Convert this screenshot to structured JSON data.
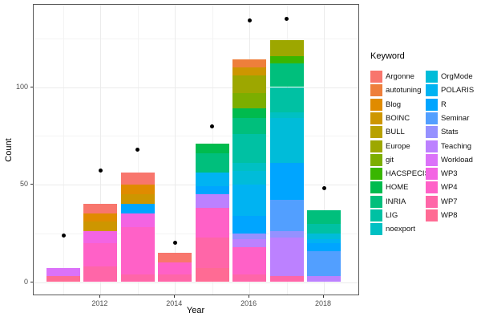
{
  "figure": {
    "background": "#FFFFFF",
    "panel_border_color": "#595959",
    "grid_major_color": "#EBEBEB",
    "grid_minor_color": "#F3F3F3",
    "point_color": "#000000",
    "tick_label_color": "#4D4D4D"
  },
  "chart_data": {
    "type": "bar",
    "stacked": true,
    "title": "",
    "xlabel": "Year",
    "ylabel": "Count",
    "legend_title": "Keyword",
    "legend_position": "right",
    "grid": true,
    "x_major_ticks": [
      2012,
      2014,
      2016,
      2018
    ],
    "x_minor_gridlines": [
      2011,
      2013,
      2015,
      2017
    ],
    "y_major_ticks": [
      0,
      50,
      100
    ],
    "y_minor_gridlines": [
      25,
      75,
      125
    ],
    "ylim": [
      -7,
      142
    ],
    "xlim": [
      2010.2,
      2018.8
    ],
    "segment_order": "bottom_to_top",
    "keywords": [
      {
        "label": "Argonne",
        "color": "#F8766D"
      },
      {
        "label": "autotuning",
        "color": "#EE7F3B"
      },
      {
        "label": "Blog",
        "color": "#E08B00"
      },
      {
        "label": "BOINC",
        "color": "#CD9600"
      },
      {
        "label": "BULL",
        "color": "#B8A100"
      },
      {
        "label": "Europe",
        "color": "#9DA700"
      },
      {
        "label": "git",
        "color": "#7CAE00"
      },
      {
        "label": "HACSPECIS",
        "color": "#39B600"
      },
      {
        "label": "HOME",
        "color": "#00BB4E"
      },
      {
        "label": "INRIA",
        "color": "#00BF7C"
      },
      {
        "label": "LIG",
        "color": "#00C1A3"
      },
      {
        "label": "noexport",
        "color": "#00C0C3"
      },
      {
        "label": "OrgMode",
        "color": "#00BCD9"
      },
      {
        "label": "POLARIS",
        "color": "#00B3F2"
      },
      {
        "label": "R",
        "color": "#00A5FF"
      },
      {
        "label": "Seminar",
        "color": "#529FFF"
      },
      {
        "label": "Stats",
        "color": "#9591FF"
      },
      {
        "label": "Teaching",
        "color": "#BC81FF"
      },
      {
        "label": "Workload",
        "color": "#DB72F9"
      },
      {
        "label": "WP3",
        "color": "#F364E3"
      },
      {
        "label": "WP4",
        "color": "#FF61C7"
      },
      {
        "label": "WP7",
        "color": "#FF66A8"
      },
      {
        "label": "WP8",
        "color": "#FF6B94"
      }
    ],
    "bars": [
      {
        "year": 2011,
        "total": 7,
        "segments": [
          {
            "keyword": "WP8",
            "value": 3
          },
          {
            "keyword": "Workload",
            "value": 4
          }
        ]
      },
      {
        "year": 2012,
        "total": 40,
        "segments": [
          {
            "keyword": "WP7",
            "value": 8
          },
          {
            "keyword": "WP4",
            "value": 12
          },
          {
            "keyword": "WP3",
            "value": 6
          },
          {
            "keyword": "BOINC",
            "value": 5
          },
          {
            "keyword": "Blog",
            "value": 4
          },
          {
            "keyword": "Argonne",
            "value": 5
          }
        ]
      },
      {
        "year": 2013,
        "total": 56,
        "segments": [
          {
            "keyword": "WP7",
            "value": 4
          },
          {
            "keyword": "WP4",
            "value": 24
          },
          {
            "keyword": "WP3",
            "value": 7
          },
          {
            "keyword": "R",
            "value": 5
          },
          {
            "keyword": "BOINC",
            "value": 5
          },
          {
            "keyword": "Blog",
            "value": 5
          },
          {
            "keyword": "Argonne",
            "value": 6
          }
        ]
      },
      {
        "year": 2014,
        "total": 15,
        "segments": [
          {
            "keyword": "WP7",
            "value": 4
          },
          {
            "keyword": "WP4",
            "value": 6
          },
          {
            "keyword": "Argonne",
            "value": 5
          }
        ]
      },
      {
        "year": 2015,
        "total": 71,
        "segments": [
          {
            "keyword": "WP8",
            "value": 7
          },
          {
            "keyword": "WP7",
            "value": 16
          },
          {
            "keyword": "WP4",
            "value": 15
          },
          {
            "keyword": "Teaching",
            "value": 7
          },
          {
            "keyword": "R",
            "value": 4
          },
          {
            "keyword": "POLARIS",
            "value": 7
          },
          {
            "keyword": "INRIA",
            "value": 10
          },
          {
            "keyword": "HOME",
            "value": 5
          }
        ]
      },
      {
        "year": 2016,
        "total": 114,
        "segments": [
          {
            "keyword": "WP7",
            "value": 4
          },
          {
            "keyword": "WP4",
            "value": 14
          },
          {
            "keyword": "Teaching",
            "value": 4
          },
          {
            "keyword": "Stats",
            "value": 3
          },
          {
            "keyword": "R",
            "value": 9
          },
          {
            "keyword": "POLARIS",
            "value": 16
          },
          {
            "keyword": "OrgMode",
            "value": 7
          },
          {
            "keyword": "noexport",
            "value": 4
          },
          {
            "keyword": "LIG",
            "value": 15
          },
          {
            "keyword": "INRIA",
            "value": 8
          },
          {
            "keyword": "HOME",
            "value": 5
          },
          {
            "keyword": "git",
            "value": 8
          },
          {
            "keyword": "Europe",
            "value": 9
          },
          {
            "keyword": "BOINC",
            "value": 4
          },
          {
            "keyword": "autotuning",
            "value": 4
          }
        ]
      },
      {
        "year": 2017,
        "total": 124,
        "segments": [
          {
            "keyword": "WP7",
            "value": 3
          },
          {
            "keyword": "Teaching",
            "value": 20
          },
          {
            "keyword": "Stats",
            "value": 3
          },
          {
            "keyword": "Seminar",
            "value": 16
          },
          {
            "keyword": "R",
            "value": 19
          },
          {
            "keyword": "OrgMode",
            "value": 23
          },
          {
            "keyword": "noexport",
            "value": 3
          },
          {
            "keyword": "LIG",
            "value": 13
          },
          {
            "keyword": "INRIA",
            "value": 12
          },
          {
            "keyword": "HACSPECIS",
            "value": 4
          },
          {
            "keyword": "Europe",
            "value": 8
          }
        ]
      },
      {
        "year": 2018,
        "total": 37,
        "segments": [
          {
            "keyword": "Teaching",
            "value": 3
          },
          {
            "keyword": "Seminar",
            "value": 13
          },
          {
            "keyword": "R",
            "value": 4
          },
          {
            "keyword": "POLARIS",
            "value": 2
          },
          {
            "keyword": "OrgMode",
            "value": 3
          },
          {
            "keyword": "LIG",
            "value": 5
          },
          {
            "keyword": "INRIA",
            "value": 7
          }
        ]
      }
    ],
    "points": [
      {
        "year": 2011,
        "count": 24
      },
      {
        "year": 2012,
        "count": 57
      },
      {
        "year": 2013,
        "count": 68
      },
      {
        "year": 2014,
        "count": 20
      },
      {
        "year": 2015,
        "count": 80
      },
      {
        "year": 2016,
        "count": 134
      },
      {
        "year": 2017,
        "count": 135
      },
      {
        "year": 2018,
        "count": 48
      }
    ]
  }
}
